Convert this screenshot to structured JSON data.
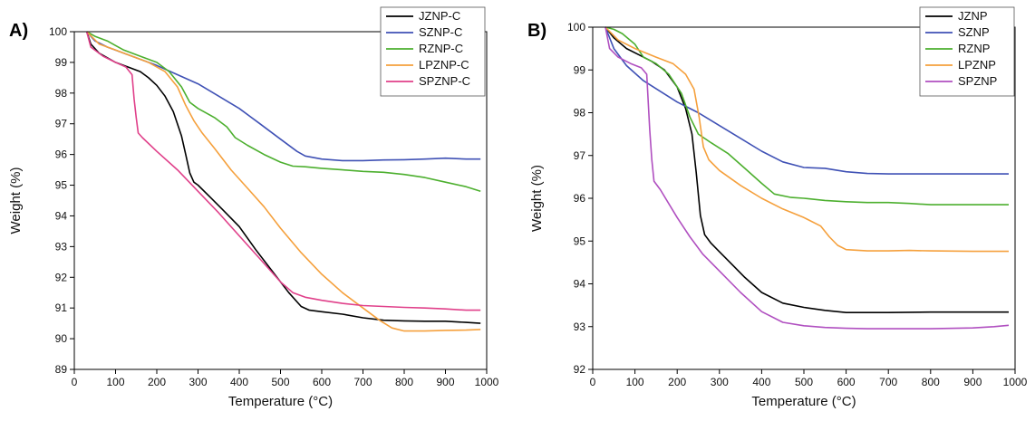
{
  "chart_data": [
    {
      "type": "line",
      "panel_label": "A)",
      "xlabel": "Temperature (°C)",
      "ylabel": "Weight (%)",
      "xlim": [
        0,
        1000
      ],
      "ylim": [
        89,
        100
      ],
      "xticks": [
        0,
        100,
        200,
        300,
        400,
        500,
        600,
        700,
        800,
        900,
        1000
      ],
      "yticks": [
        89,
        90,
        91,
        92,
        93,
        94,
        95,
        96,
        97,
        98,
        99,
        100
      ],
      "grid": false,
      "legend_position": "top-right",
      "series": [
        {
          "name": "JZNP-C",
          "color": "#000000",
          "points": [
            [
              30,
              100
            ],
            [
              40,
              99.6
            ],
            [
              60,
              99.3
            ],
            [
              80,
              99.15
            ],
            [
              100,
              99
            ],
            [
              130,
              98.85
            ],
            [
              160,
              98.7
            ],
            [
              180,
              98.5
            ],
            [
              200,
              98.25
            ],
            [
              220,
              97.9
            ],
            [
              240,
              97.4
            ],
            [
              260,
              96.6
            ],
            [
              270,
              96
            ],
            [
              280,
              95.4
            ],
            [
              290,
              95.1
            ],
            [
              300,
              95.0
            ],
            [
              330,
              94.6
            ],
            [
              360,
              94.2
            ],
            [
              400,
              93.65
            ],
            [
              440,
              92.9
            ],
            [
              480,
              92.2
            ],
            [
              520,
              91.5
            ],
            [
              550,
              91.05
            ],
            [
              570,
              90.93
            ],
            [
              600,
              90.88
            ],
            [
              650,
              90.8
            ],
            [
              700,
              90.68
            ],
            [
              750,
              90.6
            ],
            [
              800,
              90.58
            ],
            [
              850,
              90.57
            ],
            [
              900,
              90.57
            ],
            [
              950,
              90.53
            ],
            [
              985,
              90.5
            ]
          ]
        },
        {
          "name": "SZNP-C",
          "color": "#3f51b5",
          "points": [
            [
              30,
              100
            ],
            [
              50,
              99.7
            ],
            [
              80,
              99.5
            ],
            [
              120,
              99.3
            ],
            [
              160,
              99.1
            ],
            [
              200,
              98.9
            ],
            [
              250,
              98.6
            ],
            [
              300,
              98.3
            ],
            [
              350,
              97.9
            ],
            [
              400,
              97.5
            ],
            [
              450,
              97.0
            ],
            [
              500,
              96.5
            ],
            [
              540,
              96.1
            ],
            [
              560,
              95.95
            ],
            [
              600,
              95.85
            ],
            [
              650,
              95.8
            ],
            [
              700,
              95.8
            ],
            [
              750,
              95.82
            ],
            [
              800,
              95.83
            ],
            [
              850,
              95.85
            ],
            [
              900,
              95.88
            ],
            [
              950,
              95.85
            ],
            [
              985,
              95.85
            ]
          ]
        },
        {
          "name": "RZNP-C",
          "color": "#4caf2e",
          "points": [
            [
              30,
              100
            ],
            [
              50,
              99.85
            ],
            [
              80,
              99.7
            ],
            [
              100,
              99.55
            ],
            [
              120,
              99.4
            ],
            [
              160,
              99.2
            ],
            [
              200,
              99.0
            ],
            [
              230,
              98.7
            ],
            [
              260,
              98.2
            ],
            [
              280,
              97.7
            ],
            [
              300,
              97.5
            ],
            [
              340,
              97.2
            ],
            [
              370,
              96.9
            ],
            [
              390,
              96.55
            ],
            [
              420,
              96.3
            ],
            [
              460,
              96.0
            ],
            [
              500,
              95.75
            ],
            [
              530,
              95.62
            ],
            [
              560,
              95.6
            ],
            [
              600,
              95.55
            ],
            [
              650,
              95.5
            ],
            [
              700,
              95.45
            ],
            [
              750,
              95.42
            ],
            [
              800,
              95.35
            ],
            [
              850,
              95.25
            ],
            [
              900,
              95.1
            ],
            [
              950,
              94.95
            ],
            [
              985,
              94.8
            ]
          ]
        },
        {
          "name": "LPZNP-C",
          "color": "#f5a03c",
          "points": [
            [
              30,
              100
            ],
            [
              60,
              99.6
            ],
            [
              100,
              99.4
            ],
            [
              140,
              99.2
            ],
            [
              180,
              99.0
            ],
            [
              220,
              98.7
            ],
            [
              250,
              98.2
            ],
            [
              270,
              97.6
            ],
            [
              290,
              97.1
            ],
            [
              310,
              96.7
            ],
            [
              340,
              96.2
            ],
            [
              380,
              95.5
            ],
            [
              420,
              94.9
            ],
            [
              460,
              94.3
            ],
            [
              500,
              93.6
            ],
            [
              550,
              92.8
            ],
            [
              600,
              92.1
            ],
            [
              650,
              91.5
            ],
            [
              700,
              91.0
            ],
            [
              740,
              90.6
            ],
            [
              770,
              90.35
            ],
            [
              800,
              90.25
            ],
            [
              850,
              90.25
            ],
            [
              900,
              90.27
            ],
            [
              950,
              90.28
            ],
            [
              985,
              90.3
            ]
          ]
        },
        {
          "name": "SPZNP-C",
          "color": "#e0408a",
          "points": [
            [
              30,
              100
            ],
            [
              40,
              99.5
            ],
            [
              70,
              99.2
            ],
            [
              100,
              99.0
            ],
            [
              125,
              98.85
            ],
            [
              140,
              98.6
            ],
            [
              145,
              97.8
            ],
            [
              150,
              97.2
            ],
            [
              155,
              96.7
            ],
            [
              165,
              96.55
            ],
            [
              200,
              96.1
            ],
            [
              250,
              95.5
            ],
            [
              300,
              94.8
            ],
            [
              350,
              94.1
            ],
            [
              400,
              93.35
            ],
            [
              450,
              92.6
            ],
            [
              500,
              91.85
            ],
            [
              530,
              91.5
            ],
            [
              560,
              91.35
            ],
            [
              600,
              91.25
            ],
            [
              650,
              91.15
            ],
            [
              700,
              91.08
            ],
            [
              750,
              91.05
            ],
            [
              800,
              91.02
            ],
            [
              850,
              91.0
            ],
            [
              900,
              90.97
            ],
            [
              950,
              90.93
            ],
            [
              985,
              90.93
            ]
          ]
        }
      ]
    },
    {
      "type": "line",
      "panel_label": "B)",
      "xlabel": "Temperature (°C)",
      "ylabel": "Weight (%)",
      "xlim": [
        0,
        1000
      ],
      "ylim": [
        92,
        100
      ],
      "xticks": [
        0,
        100,
        200,
        300,
        400,
        500,
        600,
        700,
        800,
        900,
        1000
      ],
      "yticks": [
        92,
        93,
        94,
        95,
        96,
        97,
        98,
        99,
        100
      ],
      "grid": false,
      "legend_position": "top-right",
      "series": [
        {
          "name": "JZNP",
          "color": "#000000",
          "points": [
            [
              30,
              100
            ],
            [
              50,
              99.75
            ],
            [
              80,
              99.5
            ],
            [
              110,
              99.35
            ],
            [
              140,
              99.2
            ],
            [
              170,
              99.0
            ],
            [
              200,
              98.6
            ],
            [
              220,
              98.1
            ],
            [
              235,
              97.5
            ],
            [
              245,
              96.6
            ],
            [
              255,
              95.6
            ],
            [
              265,
              95.15
            ],
            [
              280,
              94.95
            ],
            [
              300,
              94.75
            ],
            [
              330,
              94.45
            ],
            [
              360,
              94.15
            ],
            [
              400,
              93.8
            ],
            [
              450,
              93.55
            ],
            [
              500,
              93.45
            ],
            [
              550,
              93.38
            ],
            [
              600,
              93.33
            ],
            [
              650,
              93.33
            ],
            [
              700,
              93.33
            ],
            [
              800,
              93.34
            ],
            [
              900,
              93.34
            ],
            [
              985,
              93.34
            ]
          ]
        },
        {
          "name": "SZNP",
          "color": "#3f51b5",
          "points": [
            [
              30,
              100
            ],
            [
              50,
              99.5
            ],
            [
              80,
              99.1
            ],
            [
              120,
              98.75
            ],
            [
              160,
              98.5
            ],
            [
              200,
              98.25
            ],
            [
              250,
              98.0
            ],
            [
              300,
              97.7
            ],
            [
              350,
              97.4
            ],
            [
              400,
              97.1
            ],
            [
              450,
              96.85
            ],
            [
              500,
              96.72
            ],
            [
              550,
              96.7
            ],
            [
              600,
              96.62
            ],
            [
              650,
              96.58
            ],
            [
              700,
              96.57
            ],
            [
              800,
              96.57
            ],
            [
              900,
              96.57
            ],
            [
              985,
              96.57
            ]
          ]
        },
        {
          "name": "RZNP",
          "color": "#4caf2e",
          "points": [
            [
              30,
              100
            ],
            [
              50,
              99.95
            ],
            [
              70,
              99.85
            ],
            [
              100,
              99.6
            ],
            [
              120,
              99.3
            ],
            [
              150,
              99.15
            ],
            [
              180,
              98.9
            ],
            [
              210,
              98.45
            ],
            [
              230,
              97.9
            ],
            [
              250,
              97.5
            ],
            [
              280,
              97.3
            ],
            [
              320,
              97.05
            ],
            [
              360,
              96.7
            ],
            [
              400,
              96.35
            ],
            [
              430,
              96.1
            ],
            [
              470,
              96.02
            ],
            [
              500,
              96.0
            ],
            [
              550,
              95.95
            ],
            [
              600,
              95.92
            ],
            [
              650,
              95.9
            ],
            [
              700,
              95.9
            ],
            [
              750,
              95.88
            ],
            [
              800,
              95.85
            ],
            [
              900,
              95.85
            ],
            [
              985,
              95.85
            ]
          ]
        },
        {
          "name": "LPZNP",
          "color": "#f5a03c",
          "points": [
            [
              30,
              100
            ],
            [
              60,
              99.7
            ],
            [
              100,
              99.5
            ],
            [
              150,
              99.3
            ],
            [
              190,
              99.15
            ],
            [
              220,
              98.9
            ],
            [
              240,
              98.55
            ],
            [
              252,
              97.9
            ],
            [
              262,
              97.2
            ],
            [
              275,
              96.9
            ],
            [
              300,
              96.65
            ],
            [
              350,
              96.3
            ],
            [
              400,
              96.0
            ],
            [
              450,
              95.75
            ],
            [
              500,
              95.55
            ],
            [
              540,
              95.35
            ],
            [
              560,
              95.1
            ],
            [
              580,
              94.9
            ],
            [
              600,
              94.8
            ],
            [
              650,
              94.77
            ],
            [
              700,
              94.77
            ],
            [
              750,
              94.78
            ],
            [
              800,
              94.77
            ],
            [
              900,
              94.76
            ],
            [
              985,
              94.76
            ]
          ]
        },
        {
          "name": "SPZNP",
          "color": "#b04fc0",
          "points": [
            [
              30,
              100
            ],
            [
              40,
              99.5
            ],
            [
              60,
              99.3
            ],
            [
              90,
              99.15
            ],
            [
              115,
              99.05
            ],
            [
              128,
              98.9
            ],
            [
              135,
              97.6
            ],
            [
              140,
              96.9
            ],
            [
              145,
              96.4
            ],
            [
              160,
              96.2
            ],
            [
              200,
              95.55
            ],
            [
              230,
              95.1
            ],
            [
              260,
              94.7
            ],
            [
              300,
              94.3
            ],
            [
              350,
              93.8
            ],
            [
              400,
              93.35
            ],
            [
              450,
              93.1
            ],
            [
              500,
              93.02
            ],
            [
              550,
              92.98
            ],
            [
              600,
              92.96
            ],
            [
              650,
              92.95
            ],
            [
              700,
              92.95
            ],
            [
              800,
              92.95
            ],
            [
              900,
              92.97
            ],
            [
              950,
              93.0
            ],
            [
              985,
              93.03
            ]
          ]
        }
      ]
    }
  ]
}
